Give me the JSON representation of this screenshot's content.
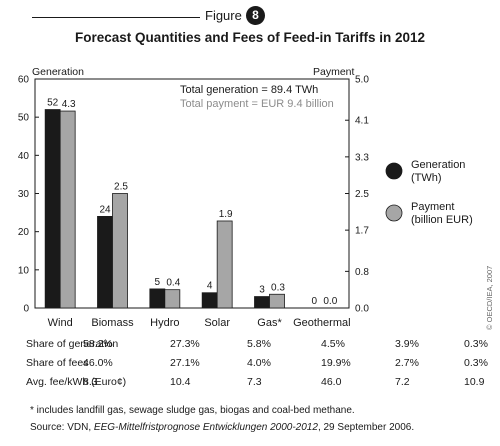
{
  "figure": {
    "label": "Figure",
    "number": "8"
  },
  "chart_data": {
    "type": "bar",
    "title": "Forecast Quantities and Fees of Feed-in Tariffs in 2012",
    "categories": [
      "Wind",
      "Biomass",
      "Hydro",
      "Solar",
      "Gas*",
      "Geothermal"
    ],
    "series": [
      {
        "name": "Generation (TWh)",
        "axis": "left",
        "color": "#1a1a1a",
        "values": [
          52,
          24,
          5,
          4,
          3,
          0
        ],
        "labels": [
          "52",
          "24",
          "5",
          "4",
          "3",
          "0"
        ]
      },
      {
        "name": "Payment (billion EUR)",
        "axis": "right",
        "color": "#a6a6a6",
        "values": [
          4.3,
          2.5,
          0.4,
          1.9,
          0.3,
          0.0
        ],
        "labels": [
          "4.3",
          "2.5",
          "0.4",
          "1.9",
          "0.3",
          "0.0"
        ]
      }
    ],
    "ylabel_left": "Generation",
    "ylabel_right": "Payment",
    "ylim_left": [
      0,
      60
    ],
    "ylim_right": [
      0,
      5.0
    ],
    "yticks_left": [
      0,
      10,
      20,
      30,
      40,
      50,
      60
    ],
    "yticks_right": [
      "0.0",
      "0.8",
      "1.7",
      "2.5",
      "3.3",
      "4.1",
      "5.0"
    ],
    "legend": [
      {
        "line1": "Generation",
        "line2": "(TWh)",
        "color": "#1a1a1a"
      },
      {
        "line1": "Payment",
        "line2": "(billion EUR)",
        "color": "#a6a6a6"
      }
    ],
    "legend_position": "right",
    "annotations": {
      "total_generation": "Total generation = 89.4 TWh",
      "total_payment": "Total payment = EUR 9.4 billion"
    },
    "grid": false
  },
  "stats": [
    {
      "label": "Share of generation",
      "values": [
        "58.2%",
        "27.3%",
        "5.8%",
        "4.5%",
        "3.9%",
        "0.3%"
      ]
    },
    {
      "label": "Share of fees",
      "values": [
        "46.0%",
        "27.1%",
        "4.0%",
        "19.9%",
        "2.7%",
        "0.3%"
      ]
    },
    {
      "label": "Avg. fee/kWh (Euro¢)",
      "values": [
        "8.3",
        "10.4",
        "7.3",
        "46.0",
        "7.2",
        "10.9"
      ]
    }
  ],
  "footnote": "* includes landfill gas, sewage sludge gas, biogas and coal-bed methane.",
  "source": {
    "prefix": "Source: VDN, ",
    "title": "EEG-Mittelfristprognose Entwicklungen 2000-2012",
    "suffix": ", 29 September 2006."
  },
  "copyright": "© OECD/IEA, 2007"
}
